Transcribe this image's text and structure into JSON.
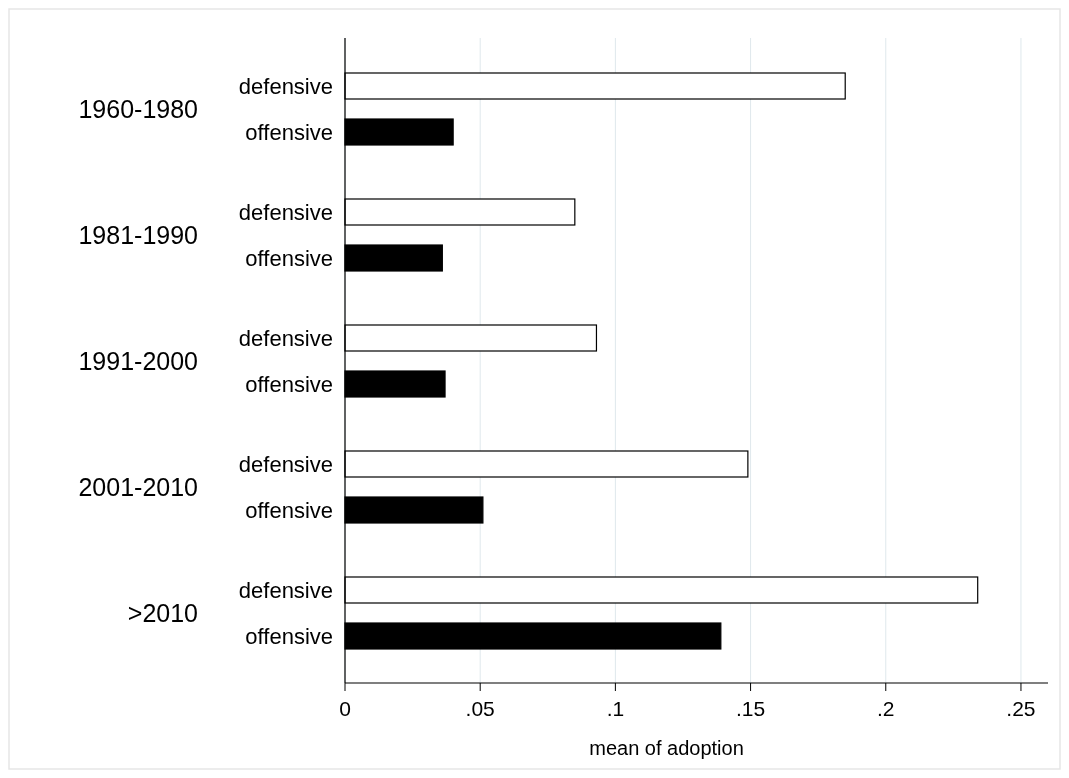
{
  "chart_data": {
    "type": "bar",
    "orientation": "horizontal",
    "xlabel": "mean of adoption",
    "categories": [
      "1960-1980",
      "1981-1990",
      "1991-2000",
      "2001-2010",
      ">2010"
    ],
    "series": [
      {
        "name": "defensive",
        "color": "#ffffff",
        "values": [
          0.185,
          0.085,
          0.093,
          0.149,
          0.234
        ]
      },
      {
        "name": "offensive",
        "color": "#000000",
        "values": [
          0.04,
          0.036,
          0.037,
          0.051,
          0.139
        ]
      }
    ],
    "xlim": [
      0,
      0.26
    ],
    "xticks": [
      {
        "value": 0,
        "label": "0"
      },
      {
        "value": 0.05,
        "label": ".05"
      },
      {
        "value": 0.1,
        "label": ".1"
      },
      {
        "value": 0.15,
        "label": ".15"
      },
      {
        "value": 0.2,
        "label": ".2"
      },
      {
        "value": 0.25,
        "label": ".25"
      }
    ],
    "grid": "x"
  }
}
